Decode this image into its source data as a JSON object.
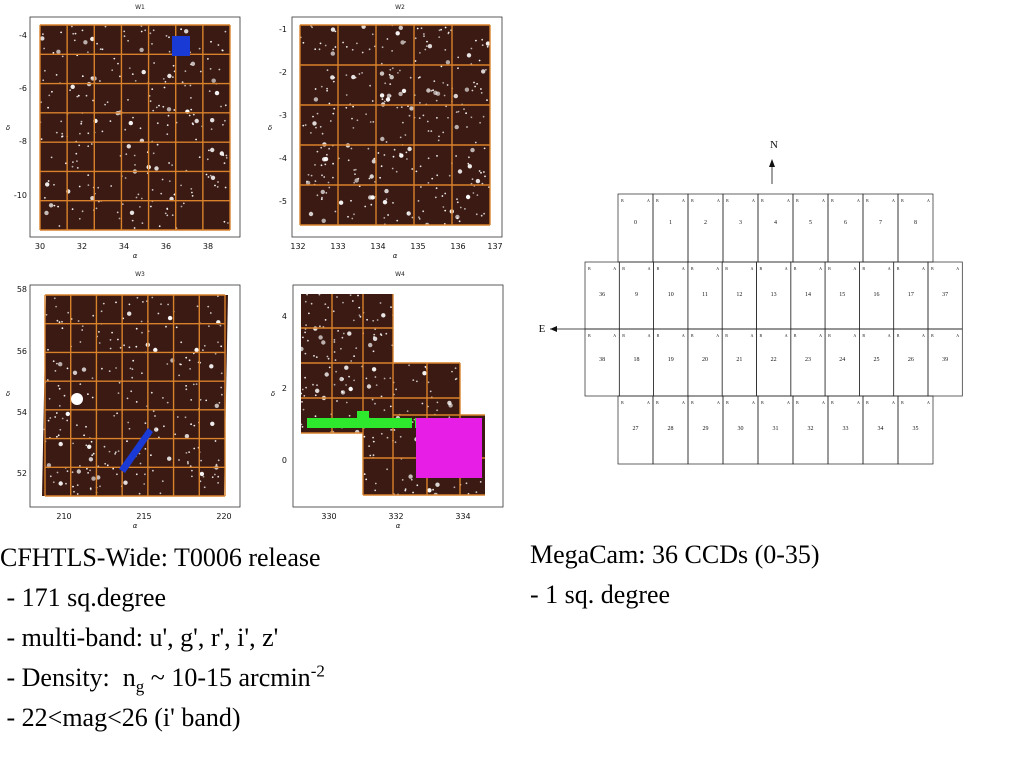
{
  "panels": [
    {
      "id": "w1",
      "title": "W1",
      "xticks": [
        "30",
        "32",
        "34",
        "36",
        "38"
      ],
      "yticks": [
        "-4",
        "-6",
        "-8",
        "-10"
      ],
      "xlabel": "α",
      "ylabel": "δ"
    },
    {
      "id": "w2",
      "title": "W2",
      "xticks": [
        "132",
        "133",
        "134",
        "135",
        "136",
        "137"
      ],
      "yticks": [
        "-1",
        "-2",
        "-3",
        "-4",
        "-5"
      ],
      "xlabel": "α",
      "ylabel": "δ"
    },
    {
      "id": "w3",
      "title": "W3",
      "xticks": [
        "210",
        "215",
        "220"
      ],
      "yticks": [
        "58",
        "56",
        "54",
        "52"
      ],
      "xlabel": "α",
      "ylabel": "δ"
    },
    {
      "id": "w4",
      "title": "W4",
      "xticks": [
        "330",
        "332",
        "334"
      ],
      "yticks": [
        "4",
        "2",
        "0"
      ],
      "xlabel": "α",
      "ylabel": "δ"
    }
  ],
  "megacam": {
    "north": "N",
    "east": "E",
    "top_row": [
      "0",
      "1",
      "2",
      "3",
      "4",
      "5",
      "6",
      "7",
      "8"
    ],
    "mid_row_top": [
      "36",
      "9",
      "10",
      "11",
      "12",
      "13",
      "14",
      "15",
      "16",
      "17",
      "37"
    ],
    "mid_row_bottom": [
      "38",
      "18",
      "19",
      "20",
      "21",
      "22",
      "23",
      "24",
      "25",
      "26",
      "39"
    ],
    "bottom_row": [
      "27",
      "28",
      "29",
      "30",
      "31",
      "32",
      "33",
      "34",
      "35"
    ]
  },
  "left_text": {
    "line1": "CFHTLS-Wide: T0006 release",
    "line2": " - 171 sq.degree",
    "line3": " - multi-band: u', g', r', i', z'",
    "line4_pre": " - Density:  n",
    "line4_sub": "g",
    "line4_mid": " ~ 10-15 arcmin",
    "line4_sup": "-2",
    "line5": " - 22<mag<26 (i' band)"
  },
  "right_text": {
    "line1": "MegaCam: 36 CCDs (0-35)",
    "line2": "- 1 sq. degree"
  },
  "colors": {
    "field": "#3a1a12",
    "grid": "#d9822b",
    "blue": "#1a3ad6",
    "green": "#2ee82e",
    "magenta": "#e61ee6"
  }
}
